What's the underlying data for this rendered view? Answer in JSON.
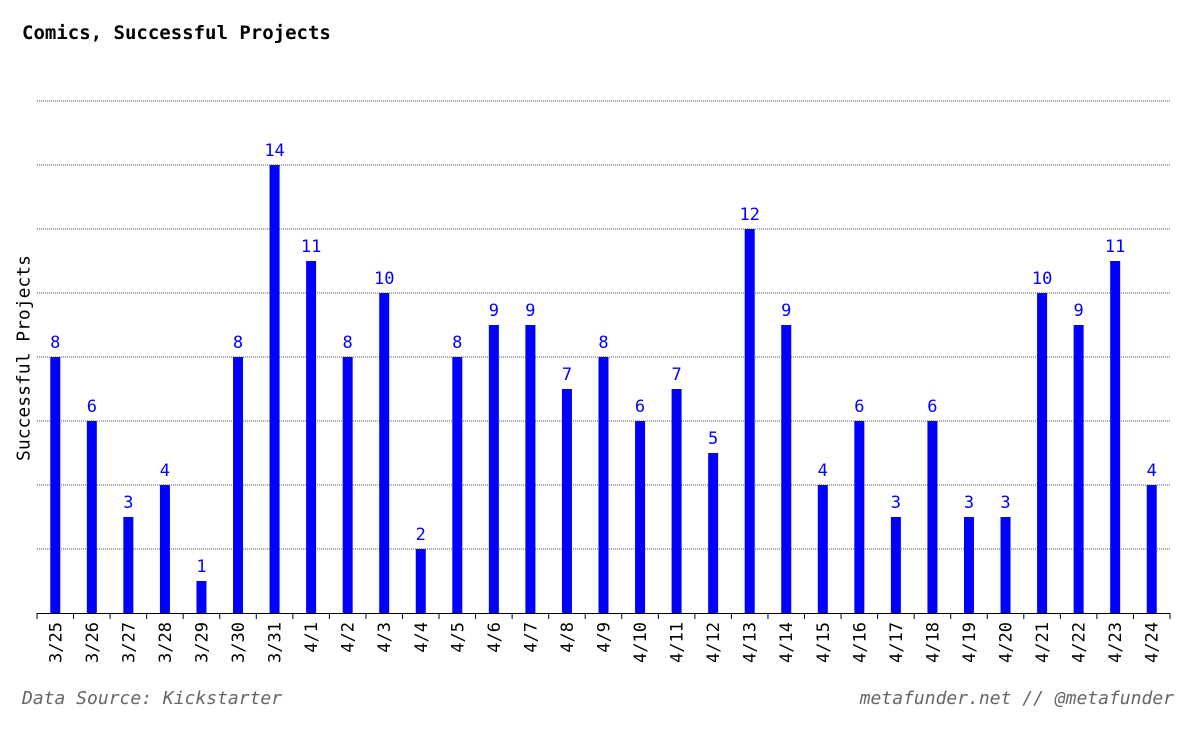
{
  "chart_data": {
    "type": "bar",
    "title": "Comics, Successful Projects",
    "xlabel": "",
    "ylabel": "Successful Projects",
    "categories": [
      "3/25",
      "3/26",
      "3/27",
      "3/28",
      "3/29",
      "3/30",
      "3/31",
      "4/1",
      "4/2",
      "4/3",
      "4/4",
      "4/5",
      "4/6",
      "4/7",
      "4/8",
      "4/9",
      "4/10",
      "4/11",
      "4/12",
      "4/13",
      "4/14",
      "4/15",
      "4/16",
      "4/17",
      "4/18",
      "4/19",
      "4/20",
      "4/21",
      "4/22",
      "4/23",
      "4/24"
    ],
    "values": [
      8,
      6,
      3,
      4,
      1,
      8,
      14,
      11,
      8,
      10,
      2,
      8,
      9,
      9,
      7,
      8,
      6,
      7,
      5,
      12,
      9,
      4,
      6,
      3,
      6,
      3,
      3,
      10,
      9,
      11,
      4
    ],
    "ylim": [
      0,
      16
    ],
    "grid": true,
    "colors": {
      "bar": "#0000ff",
      "label": "#0000ff",
      "grid": "#555555"
    }
  },
  "footer": {
    "source": "Data Source: Kickstarter",
    "credit": "metafunder.net // @metafunder"
  }
}
